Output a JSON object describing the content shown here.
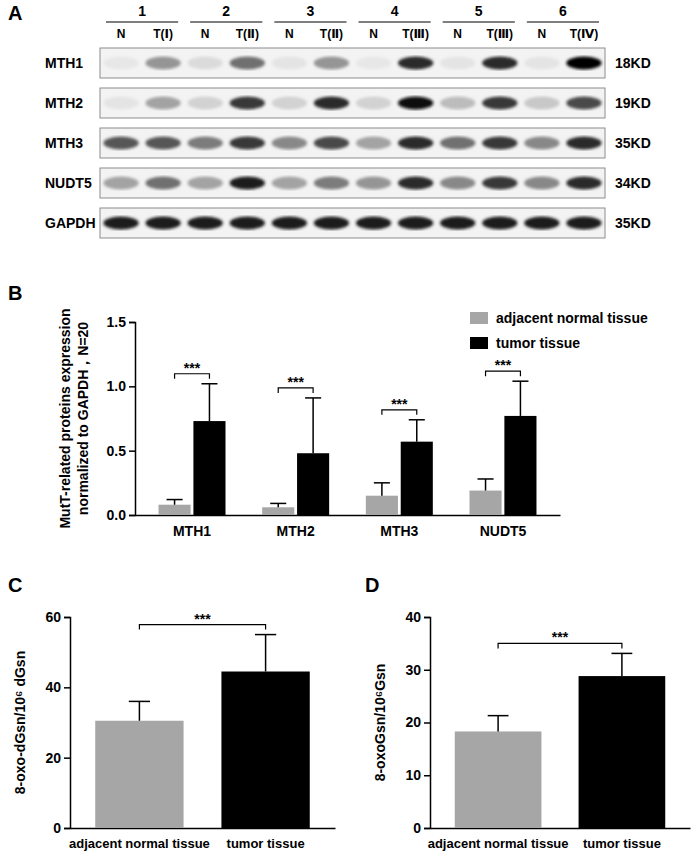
{
  "blot": {
    "panel": "A",
    "lanes": [
      {
        "label": "1",
        "sub": [
          "N",
          "T(Ⅰ)"
        ]
      },
      {
        "label": "2",
        "sub": [
          "N",
          "T(Ⅱ)"
        ]
      },
      {
        "label": "3",
        "sub": [
          "N",
          "T(Ⅱ)"
        ]
      },
      {
        "label": "4",
        "sub": [
          "N",
          "T(Ⅲ)"
        ]
      },
      {
        "label": "5",
        "sub": [
          "N",
          "T(Ⅲ)"
        ]
      },
      {
        "label": "6",
        "sub": [
          "N",
          "T(Ⅳ)"
        ]
      }
    ],
    "rows": [
      {
        "label": "MTH1",
        "size": "18KD",
        "intensity": [
          0.08,
          0.45,
          0.15,
          0.6,
          0.1,
          0.45,
          0.08,
          0.85,
          0.1,
          0.85,
          0.1,
          1.0
        ]
      },
      {
        "label": "MTH2",
        "size": "19KD",
        "intensity": [
          0.1,
          0.4,
          0.2,
          0.8,
          0.2,
          0.85,
          0.2,
          0.95,
          0.3,
          0.8,
          0.25,
          0.75
        ]
      },
      {
        "label": "MTH3",
        "size": "35KD",
        "intensity": [
          0.7,
          0.7,
          0.55,
          0.8,
          0.5,
          0.75,
          0.4,
          0.85,
          0.6,
          0.8,
          0.5,
          0.85
        ]
      },
      {
        "label": "NUDT5",
        "size": "34KD",
        "intensity": [
          0.4,
          0.6,
          0.4,
          0.9,
          0.4,
          0.55,
          0.45,
          0.85,
          0.5,
          0.8,
          0.5,
          0.85
        ]
      },
      {
        "label": "GAPDH",
        "size": "35KD",
        "intensity": [
          0.9,
          0.9,
          0.9,
          0.9,
          0.9,
          0.9,
          0.9,
          0.9,
          0.9,
          0.9,
          0.9,
          0.9
        ]
      }
    ]
  },
  "chart_data": [
    {
      "panel": "B",
      "type": "bar",
      "y_label": [
        "MutT-related proteins expression",
        "normalized to GAPDH，N=20"
      ],
      "categories": [
        "MTH1",
        "MTH2",
        "MTH3",
        "NUDT5"
      ],
      "series": [
        {
          "name": "adjacent normal tissue",
          "color": "#a6a6a6",
          "values": [
            0.08,
            0.06,
            0.15,
            0.19
          ],
          "errors": [
            0.04,
            0.03,
            0.1,
            0.09
          ]
        },
        {
          "name": "tumor tissue",
          "color": "#000000",
          "values": [
            0.73,
            0.48,
            0.57,
            0.77
          ],
          "errors": [
            0.29,
            0.43,
            0.17,
            0.27
          ]
        }
      ],
      "ylim": [
        0,
        1.5
      ],
      "yticks": [
        {
          "value": 0,
          "label": "0.0"
        },
        0.5,
        {
          "value": 1,
          "label": "1.0"
        },
        1.5
      ],
      "legend": "top-right",
      "annotations": [
        {
          "text": "***",
          "category": 0
        },
        {
          "text": "***",
          "category": 1
        },
        {
          "text": "***",
          "category": 2
        },
        {
          "text": "***",
          "category": 3
        }
      ]
    },
    {
      "panel": "C",
      "type": "bar",
      "y_label": "8-oxo-dGsn/10⁶ dGsn",
      "categories": [
        "adjacent normal tissue",
        "tumor tissue"
      ],
      "values": [
        30.5,
        44.5
      ],
      "errors": [
        5.5,
        10.5
      ],
      "colors": [
        "#a6a6a6",
        "#000000"
      ],
      "ylim": [
        0,
        60
      ],
      "yticks": [
        0,
        20,
        40,
        60
      ],
      "annotations": [
        {
          "text": "***"
        }
      ]
    },
    {
      "panel": "D",
      "type": "bar",
      "y_label": "8-oxoGsn/10⁶Gsn",
      "categories": [
        "adjacent normal tissue",
        "tumor tissue"
      ],
      "values": [
        18.3,
        28.8
      ],
      "errors": [
        3,
        4.3
      ],
      "colors": [
        "#a6a6a6",
        "#000000"
      ],
      "ylim": [
        0,
        40
      ],
      "yticks": [
        0,
        10,
        20,
        30,
        40
      ],
      "annotations": [
        {
          "text": "***"
        }
      ]
    }
  ]
}
